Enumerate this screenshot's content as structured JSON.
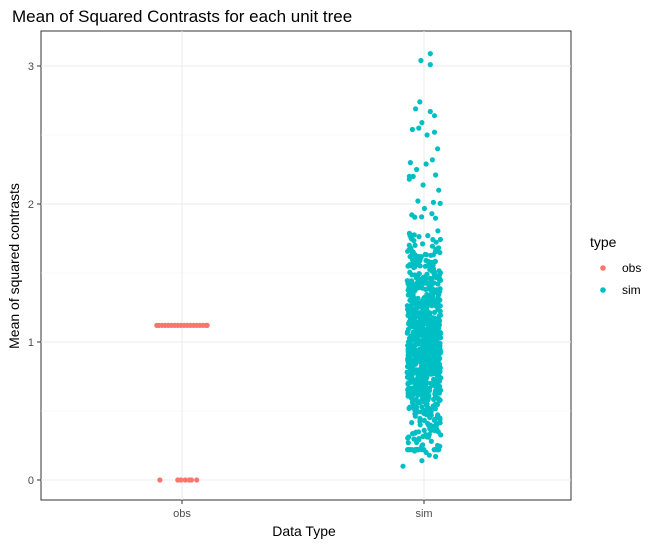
{
  "chart_data": {
    "type": "scatter",
    "title": "Mean of Squared Contrasts for each unit tree",
    "xlabel": "Data Type",
    "ylabel": "Mean of squared contrasts",
    "categories": [
      "obs",
      "sim"
    ],
    "ylim": [
      -0.15,
      3.2
    ],
    "yticks": [
      0,
      1,
      2,
      3
    ],
    "grid": true,
    "jitter": true,
    "legend": {
      "title": "type",
      "placement": "right",
      "entries": [
        "obs",
        "sim"
      ]
    },
    "colors": {
      "obs": "#F8766D",
      "sim": "#00BFC4"
    },
    "series": [
      {
        "name": "obs",
        "category": "obs",
        "values": [
          {
            "jitter": -0.22,
            "y": 1.12
          },
          {
            "jitter": -0.19,
            "y": 1.12
          },
          {
            "jitter": -0.16,
            "y": 1.12
          },
          {
            "jitter": -0.13,
            "y": 1.12
          },
          {
            "jitter": -0.1,
            "y": 1.12
          },
          {
            "jitter": -0.07,
            "y": 1.12
          },
          {
            "jitter": -0.04,
            "y": 1.12
          },
          {
            "jitter": -0.01,
            "y": 1.12
          },
          {
            "jitter": 0.02,
            "y": 1.12
          },
          {
            "jitter": 0.05,
            "y": 1.12
          },
          {
            "jitter": 0.08,
            "y": 1.12
          },
          {
            "jitter": 0.11,
            "y": 1.12
          },
          {
            "jitter": 0.14,
            "y": 1.12
          },
          {
            "jitter": 0.17,
            "y": 1.12
          },
          {
            "jitter": 0.2,
            "y": 1.12
          },
          {
            "jitter": 0.23,
            "y": 1.12
          },
          {
            "jitter": -0.24,
            "y": 1.12
          },
          {
            "jitter": 0.24,
            "y": 1.12
          },
          {
            "jitter": -0.21,
            "y": 0
          },
          {
            "jitter": -0.04,
            "y": 0
          },
          {
            "jitter": -0.01,
            "y": 0
          },
          {
            "jitter": 0.03,
            "y": 0
          },
          {
            "jitter": 0.07,
            "y": 0
          },
          {
            "jitter": 0.09,
            "y": 0
          },
          {
            "jitter": 0.14,
            "y": 0
          }
        ]
      },
      {
        "name": "sim",
        "category": "sim",
        "values": [
          {
            "jitter": 0.06,
            "y": 3.09
          },
          {
            "jitter": -0.03,
            "y": 3.04
          },
          {
            "jitter": 0.06,
            "y": 3.01
          },
          {
            "jitter": -0.04,
            "y": 2.74
          },
          {
            "jitter": -0.08,
            "y": 2.69
          },
          {
            "jitter": 0.06,
            "y": 2.67
          },
          {
            "jitter": 0.1,
            "y": 2.64
          },
          {
            "jitter": -0.02,
            "y": 2.59
          },
          {
            "jitter": -0.05,
            "y": 2.55
          },
          {
            "jitter": -0.11,
            "y": 2.54
          },
          {
            "jitter": 0.03,
            "y": 2.5
          },
          {
            "jitter": 0.1,
            "y": 2.52
          },
          {
            "jitter": 0.13,
            "y": 2.4
          },
          {
            "jitter": -0.13,
            "y": 2.3
          },
          {
            "jitter": 0.02,
            "y": 2.29
          },
          {
            "jitter": 0.08,
            "y": 2.32
          },
          {
            "jitter": -0.07,
            "y": 2.25
          },
          {
            "jitter": 0.11,
            "y": 2.21
          },
          {
            "jitter": -0.14,
            "y": 2.18
          },
          {
            "jitter": 0.14,
            "y": 2.1
          },
          {
            "jitter": -0.2,
            "y": 0.1
          },
          {
            "jitter": -0.02,
            "y": 0.14
          },
          {
            "jitter": 0.05,
            "y": 0.18
          },
          {
            "jitter": 0.11,
            "y": 0.17
          },
          {
            "jitter": -0.09,
            "y": 0.21
          },
          {
            "jitter": 0.02,
            "y": 0.2
          },
          {
            "jitter": -0.15,
            "y": 0.27
          },
          {
            "jitter": 0.13,
            "y": 0.25
          },
          {
            "jitter": -0.05,
            "y": 0.3
          }
        ],
        "note_bulk": "Remaining ~900 simulated points are densely distributed between 0.2 and 2.2, centered near 1.0"
      }
    ]
  }
}
